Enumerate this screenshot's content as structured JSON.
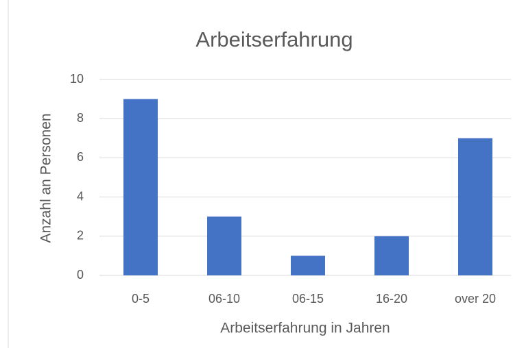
{
  "chart_data": {
    "type": "bar",
    "title": "Arbeitserfahrung",
    "x_label": "Arbeitserfahrung in Jahren",
    "y_label": "Anzahl an Personen",
    "categories": [
      "0-5",
      "06-10",
      "06-15",
      "16-20",
      "over 20"
    ],
    "values": [
      9,
      3,
      1,
      2,
      7
    ],
    "color": "#4472c4",
    "ylim": [
      0,
      10
    ],
    "yticks": [
      0,
      2,
      4,
      6,
      8,
      10
    ],
    "grid": true
  }
}
